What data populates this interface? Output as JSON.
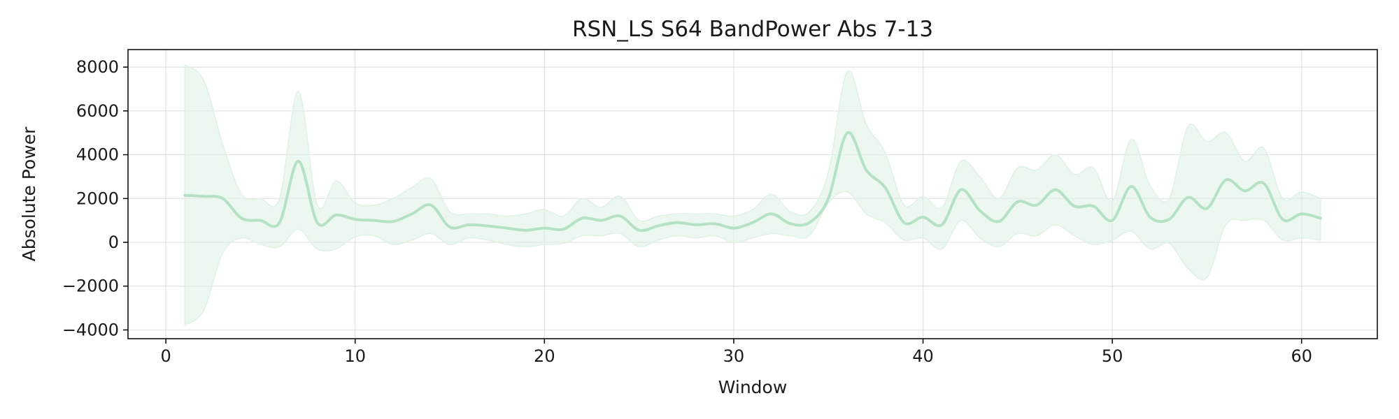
{
  "chart_data": {
    "type": "line",
    "title": "RSN_LS S64 BandPower Abs 7-13",
    "xlabel": "Window",
    "ylabel": "Absolute Power",
    "xlim": [
      -2,
      64
    ],
    "ylim": [
      -4400,
      8800
    ],
    "xticks": [
      0,
      10,
      20,
      30,
      40,
      50,
      60
    ],
    "yticks": [
      -4000,
      -2000,
      0,
      2000,
      4000,
      6000,
      8000
    ],
    "xtick_labels": [
      "0",
      "10",
      "20",
      "30",
      "40",
      "50",
      "60"
    ],
    "ytick_labels": [
      "−4000",
      "−2000",
      "0",
      "2000",
      "4000",
      "6000",
      "8000"
    ],
    "grid": true,
    "line_color": "#b5e2c4",
    "band_color": "#dff2e4",
    "series": [
      {
        "x": [
          1,
          2,
          3,
          4,
          5,
          6,
          7,
          8,
          9,
          10,
          11,
          12,
          13,
          14,
          15,
          16,
          17,
          18,
          19,
          20,
          21,
          22,
          23,
          24,
          25,
          26,
          27,
          28,
          29,
          30,
          31,
          32,
          33,
          34,
          35,
          36,
          37,
          38,
          39,
          40,
          41,
          42,
          43,
          44,
          45,
          46,
          47,
          48,
          49,
          50,
          51,
          52,
          53,
          54,
          55,
          56,
          57,
          58,
          59,
          60,
          61
        ],
        "mean": [
          2150,
          2100,
          2000,
          1100,
          1000,
          900,
          3700,
          900,
          1250,
          1050,
          1000,
          950,
          1300,
          1700,
          700,
          800,
          750,
          650,
          550,
          650,
          600,
          1100,
          1000,
          1200,
          550,
          750,
          900,
          800,
          850,
          650,
          900,
          1300,
          850,
          900,
          2000,
          5000,
          3300,
          2500,
          900,
          1150,
          800,
          2400,
          1450,
          950,
          1850,
          1700,
          2400,
          1650,
          1650,
          1000,
          2550,
          1150,
          1050,
          2050,
          1550,
          2850,
          2350,
          2700,
          1050,
          1300,
          1100
        ],
        "upper": [
          8100,
          7400,
          4500,
          2200,
          2000,
          2000,
          6900,
          1700,
          2800,
          1800,
          1700,
          2000,
          2500,
          2900,
          1400,
          1300,
          1300,
          1200,
          1300,
          1500,
          1200,
          2000,
          1600,
          2100,
          1000,
          1200,
          1300,
          1300,
          1300,
          1200,
          1500,
          2200,
          1400,
          1400,
          3200,
          7800,
          5400,
          4100,
          1700,
          2100,
          1600,
          3700,
          3000,
          2000,
          3400,
          3300,
          4000,
          3100,
          3400,
          1900,
          4700,
          2600,
          2000,
          5300,
          4600,
          5000,
          3700,
          4300,
          2000,
          2300,
          2000
        ],
        "lower": [
          -3800,
          -3100,
          -500,
          200,
          -100,
          -200,
          600,
          -300,
          -300,
          250,
          300,
          -100,
          100,
          400,
          -100,
          200,
          100,
          -100,
          -200,
          -100,
          -50,
          300,
          300,
          400,
          -200,
          100,
          300,
          200,
          300,
          0,
          200,
          400,
          300,
          300,
          1800,
          2300,
          1300,
          900,
          100,
          200,
          -300,
          1000,
          200,
          -200,
          400,
          300,
          800,
          300,
          -100,
          100,
          500,
          -300,
          -50,
          -1200,
          -1600,
          800,
          1000,
          1000,
          100,
          200,
          100
        ]
      }
    ]
  }
}
